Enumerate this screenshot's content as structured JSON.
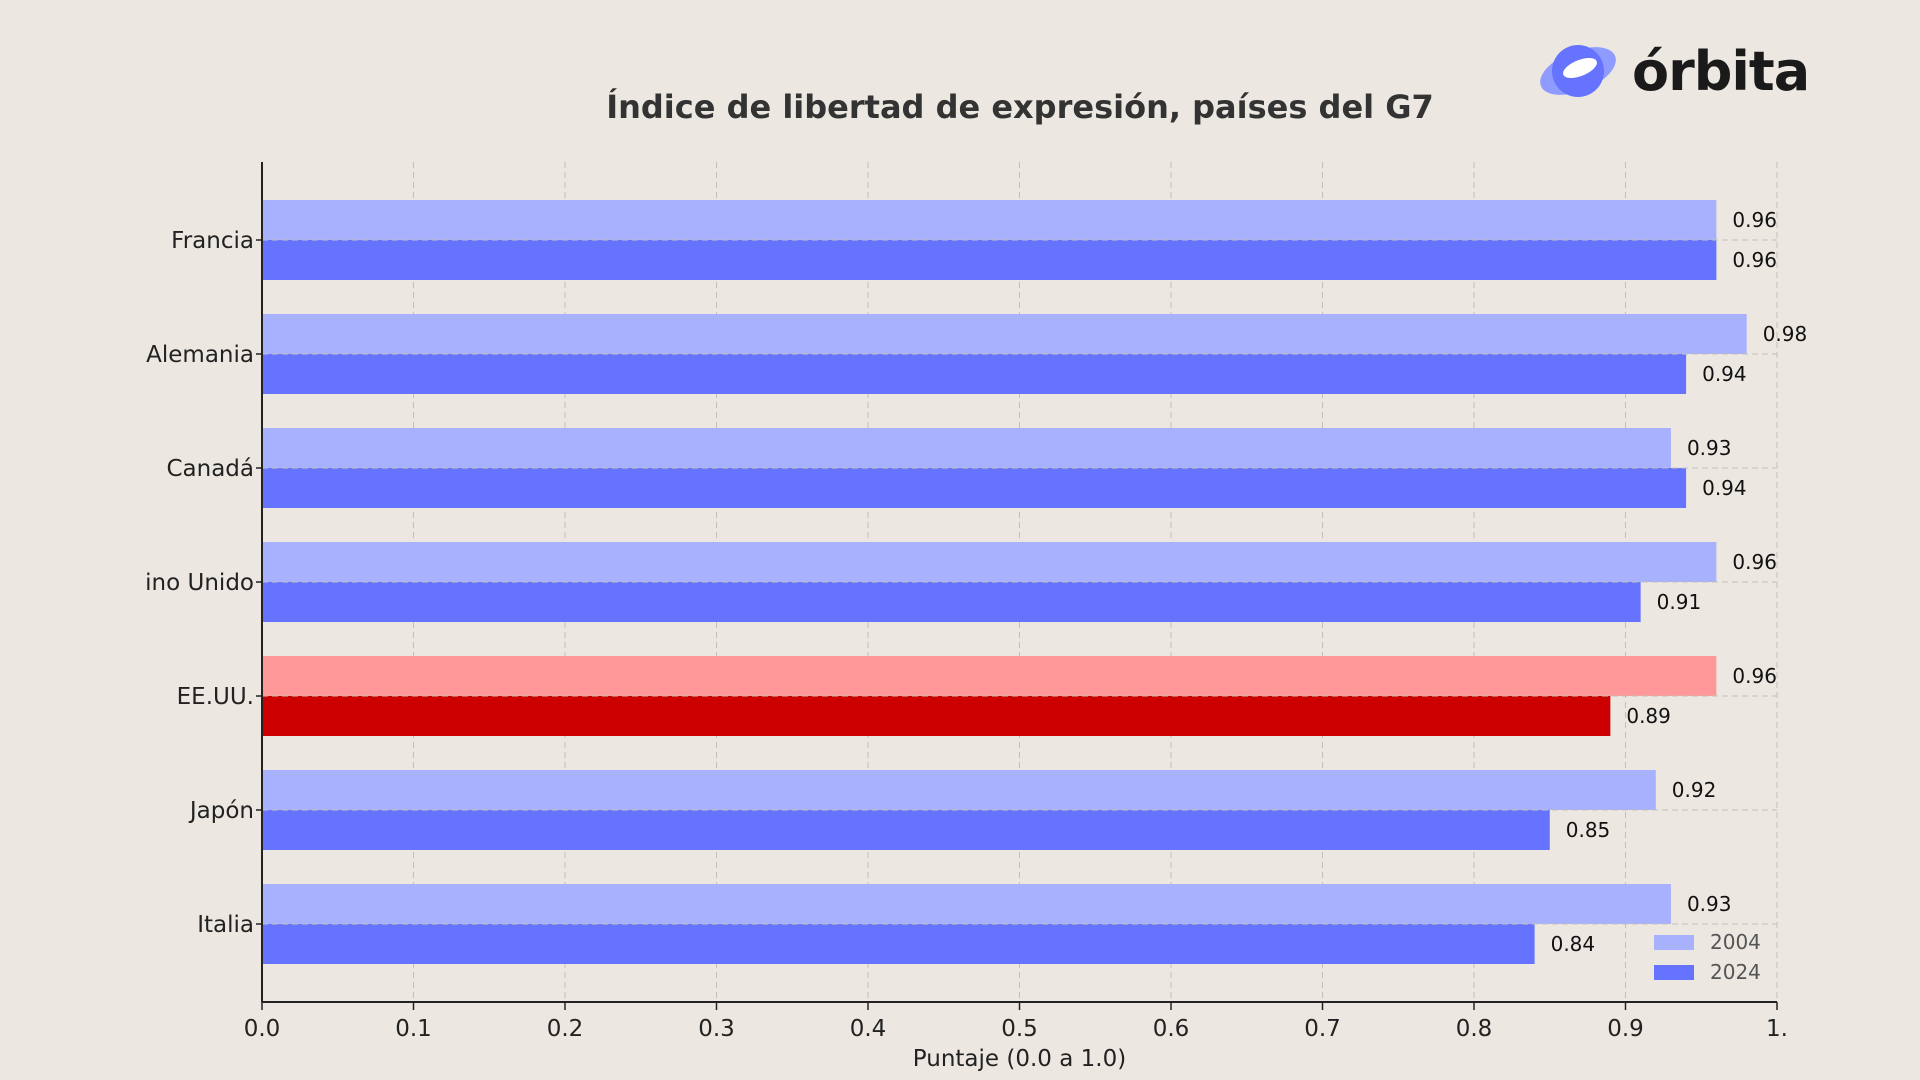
{
  "brand": {
    "name": "órbita",
    "logo_icon": "orbit-logo-icon"
  },
  "chart_data": {
    "type": "bar",
    "orientation": "horizontal",
    "title": "Índice de libertad de expresión, países del G7",
    "xlabel": "Puntaje (0.0 a 1.0)",
    "ylabel": "",
    "xlim": [
      0,
      1
    ],
    "xticks": [
      "0.0",
      "0.1",
      "0.2",
      "0.3",
      "0.4",
      "0.5",
      "0.6",
      "0.7",
      "0.8",
      "0.9",
      "1."
    ],
    "grid": "vertical dashed",
    "legend_position": "bottom-right",
    "categories": [
      "Francia",
      "Alemania",
      "Canadá",
      "ino Unido",
      "EE.UU.",
      "Japón",
      "Italia"
    ],
    "series": [
      {
        "name": "2004",
        "values": [
          0.96,
          0.98,
          0.93,
          0.96,
          0.96,
          0.92,
          0.93
        ],
        "color": "#a8b1fd"
      },
      {
        "name": "2024",
        "values": [
          0.96,
          0.94,
          0.94,
          0.91,
          0.89,
          0.85,
          0.84
        ],
        "color": "#6673fe"
      }
    ],
    "highlight": {
      "category": "EE.UU.",
      "colors": {
        "2004": "#ff9999",
        "2024": "#cc0000"
      }
    }
  }
}
